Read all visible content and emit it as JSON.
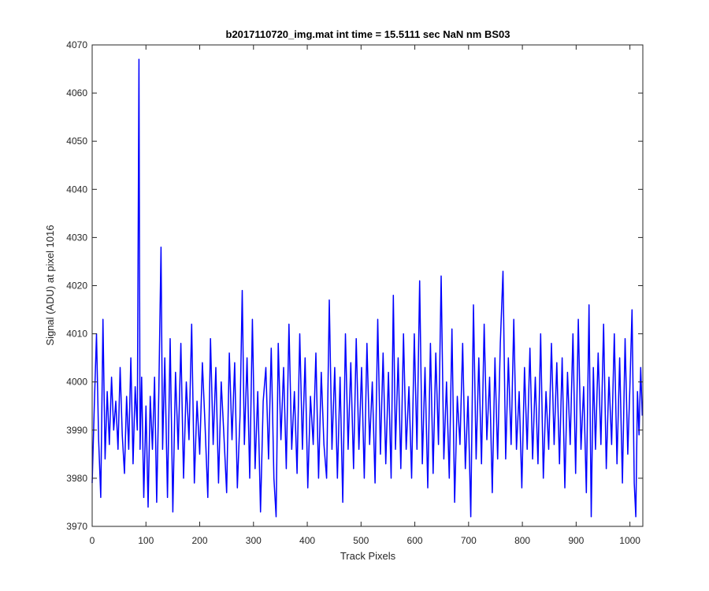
{
  "chart_data": {
    "type": "line",
    "title": "b2017110720_img.mat int time = 15.5111 sec  NaN nm BS03",
    "xlabel": "Track Pixels",
    "ylabel": "Signal (ADU) at pixel 1016",
    "xlim": [
      0,
      1024
    ],
    "ylim": [
      3970,
      4070
    ],
    "xticks": [
      0,
      100,
      200,
      300,
      400,
      500,
      600,
      700,
      800,
      900,
      1000
    ],
    "yticks": [
      3970,
      3980,
      3990,
      4000,
      4010,
      4020,
      4030,
      4040,
      4050,
      4060,
      4070
    ],
    "grid": false,
    "line_color": "#0000ff",
    "series": [
      {
        "points": [
          [
            0,
            3979
          ],
          [
            4,
            3995
          ],
          [
            8,
            4010
          ],
          [
            12,
            3988
          ],
          [
            16,
            3976
          ],
          [
            20,
            4013
          ],
          [
            24,
            3984
          ],
          [
            28,
            3998
          ],
          [
            32,
            3987
          ],
          [
            36,
            4001
          ],
          [
            40,
            3990
          ],
          [
            44,
            3996
          ],
          [
            48,
            3986
          ],
          [
            52,
            4003
          ],
          [
            56,
            3989
          ],
          [
            60,
            3981
          ],
          [
            64,
            3997
          ],
          [
            68,
            3986
          ],
          [
            72,
            4005
          ],
          [
            76,
            3983
          ],
          [
            80,
            3999
          ],
          [
            84,
            3990
          ],
          [
            87,
            4067
          ],
          [
            89,
            3986
          ],
          [
            92,
            4001
          ],
          [
            96,
            3976
          ],
          [
            100,
            3995
          ],
          [
            104,
            3974
          ],
          [
            108,
            3997
          ],
          [
            112,
            3986
          ],
          [
            116,
            4001
          ],
          [
            120,
            3975
          ],
          [
            124,
            3998
          ],
          [
            128,
            4028
          ],
          [
            131,
            3986
          ],
          [
            135,
            4005
          ],
          [
            140,
            3976
          ],
          [
            145,
            4009
          ],
          [
            150,
            3973
          ],
          [
            155,
            4002
          ],
          [
            160,
            3986
          ],
          [
            165,
            4008
          ],
          [
            170,
            3980
          ],
          [
            175,
            4000
          ],
          [
            180,
            3988
          ],
          [
            185,
            4012
          ],
          [
            190,
            3979
          ],
          [
            195,
            3996
          ],
          [
            200,
            3985
          ],
          [
            205,
            4004
          ],
          [
            210,
            3991
          ],
          [
            215,
            3976
          ],
          [
            220,
            4009
          ],
          [
            225,
            3987
          ],
          [
            230,
            4003
          ],
          [
            235,
            3979
          ],
          [
            240,
            4000
          ],
          [
            245,
            3989
          ],
          [
            250,
            3977
          ],
          [
            255,
            4006
          ],
          [
            260,
            3988
          ],
          [
            265,
            4004
          ],
          [
            270,
            3978
          ],
          [
            275,
            3993
          ],
          [
            279,
            4019
          ],
          [
            283,
            3987
          ],
          [
            288,
            4005
          ],
          [
            293,
            3980
          ],
          [
            298,
            4013
          ],
          [
            303,
            3982
          ],
          [
            308,
            3998
          ],
          [
            313,
            3973
          ],
          [
            318,
            3996
          ],
          [
            323,
            4003
          ],
          [
            328,
            3984
          ],
          [
            333,
            4007
          ],
          [
            338,
            3980
          ],
          [
            342,
            3972
          ],
          [
            346,
            4008
          ],
          [
            351,
            3988
          ],
          [
            356,
            4003
          ],
          [
            361,
            3982
          ],
          [
            366,
            4012
          ],
          [
            371,
            3986
          ],
          [
            376,
            3998
          ],
          [
            381,
            3981
          ],
          [
            386,
            4010
          ],
          [
            391,
            3986
          ],
          [
            396,
            4005
          ],
          [
            401,
            3978
          ],
          [
            406,
            3997
          ],
          [
            411,
            3987
          ],
          [
            416,
            4006
          ],
          [
            421,
            3980
          ],
          [
            426,
            4002
          ],
          [
            431,
            3987
          ],
          [
            436,
            3980
          ],
          [
            441,
            4017
          ],
          [
            446,
            3986
          ],
          [
            451,
            4003
          ],
          [
            456,
            3980
          ],
          [
            461,
            4001
          ],
          [
            466,
            3975
          ],
          [
            471,
            4010
          ],
          [
            476,
            3986
          ],
          [
            481,
            4004
          ],
          [
            486,
            3982
          ],
          [
            491,
            4009
          ],
          [
            496,
            3986
          ],
          [
            501,
            4003
          ],
          [
            506,
            3980
          ],
          [
            511,
            4008
          ],
          [
            516,
            3987
          ],
          [
            521,
            4000
          ],
          [
            526,
            3979
          ],
          [
            531,
            4013
          ],
          [
            536,
            3985
          ],
          [
            541,
            4006
          ],
          [
            546,
            3983
          ],
          [
            551,
            4002
          ],
          [
            556,
            3980
          ],
          [
            560,
            4018
          ],
          [
            564,
            3986
          ],
          [
            569,
            4005
          ],
          [
            574,
            3982
          ],
          [
            579,
            4010
          ],
          [
            584,
            3986
          ],
          [
            589,
            3999
          ],
          [
            594,
            3980
          ],
          [
            599,
            4010
          ],
          [
            604,
            3986
          ],
          [
            609,
            4021
          ],
          [
            614,
            3983
          ],
          [
            619,
            4003
          ],
          [
            624,
            3978
          ],
          [
            629,
            4008
          ],
          [
            634,
            3981
          ],
          [
            639,
            4006
          ],
          [
            644,
            3987
          ],
          [
            649,
            4022
          ],
          [
            654,
            3984
          ],
          [
            659,
            4000
          ],
          [
            664,
            3980
          ],
          [
            669,
            4011
          ],
          [
            674,
            3975
          ],
          [
            679,
            3997
          ],
          [
            684,
            3987
          ],
          [
            689,
            4008
          ],
          [
            694,
            3982
          ],
          [
            699,
            3997
          ],
          [
            704,
            3972
          ],
          [
            709,
            4016
          ],
          [
            714,
            3984
          ],
          [
            719,
            4005
          ],
          [
            724,
            3983
          ],
          [
            729,
            4012
          ],
          [
            734,
            3988
          ],
          [
            739,
            4001
          ],
          [
            744,
            3977
          ],
          [
            749,
            4005
          ],
          [
            754,
            3984
          ],
          [
            759,
            4008
          ],
          [
            764,
            4023
          ],
          [
            769,
            3984
          ],
          [
            774,
            4005
          ],
          [
            779,
            3987
          ],
          [
            784,
            4013
          ],
          [
            789,
            3986
          ],
          [
            794,
            3998
          ],
          [
            799,
            3978
          ],
          [
            804,
            4003
          ],
          [
            809,
            3986
          ],
          [
            814,
            4007
          ],
          [
            819,
            3984
          ],
          [
            824,
            4001
          ],
          [
            829,
            3983
          ],
          [
            834,
            4010
          ],
          [
            839,
            3980
          ],
          [
            844,
            3998
          ],
          [
            849,
            3986
          ],
          [
            854,
            4008
          ],
          [
            859,
            3987
          ],
          [
            864,
            4004
          ],
          [
            869,
            3983
          ],
          [
            874,
            4005
          ],
          [
            879,
            3978
          ],
          [
            884,
            4002
          ],
          [
            889,
            3987
          ],
          [
            894,
            4010
          ],
          [
            899,
            3981
          ],
          [
            904,
            4013
          ],
          [
            909,
            3986
          ],
          [
            914,
            3999
          ],
          [
            919,
            3977
          ],
          [
            924,
            4016
          ],
          [
            928,
            3972
          ],
          [
            932,
            4003
          ],
          [
            936,
            3986
          ],
          [
            941,
            4006
          ],
          [
            946,
            3987
          ],
          [
            951,
            4012
          ],
          [
            956,
            3982
          ],
          [
            961,
            4001
          ],
          [
            966,
            3987
          ],
          [
            971,
            4010
          ],
          [
            976,
            3983
          ],
          [
            981,
            4005
          ],
          [
            986,
            3979
          ],
          [
            991,
            4009
          ],
          [
            996,
            3985
          ],
          [
            1000,
            3999
          ],
          [
            1004,
            4015
          ],
          [
            1008,
            3979
          ],
          [
            1011,
            3972
          ],
          [
            1014,
            3998
          ],
          [
            1017,
            3989
          ],
          [
            1020,
            4003
          ],
          [
            1023,
            3993
          ]
        ]
      }
    ]
  }
}
